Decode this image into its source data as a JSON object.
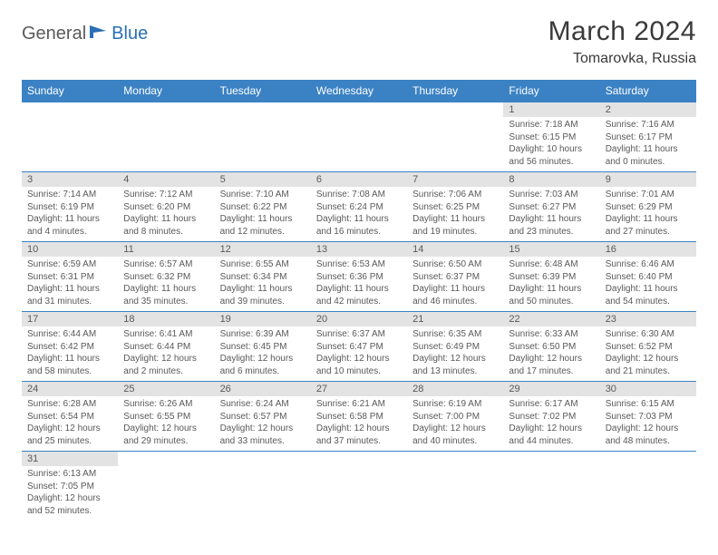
{
  "brand": {
    "part1": "General",
    "part2": "Blue"
  },
  "title": "March 2024",
  "location": "Tomarovka, Russia",
  "colors": {
    "header_bg": "#3b82c4",
    "header_text": "#ffffff",
    "daynum_bg": "#e3e3e3",
    "text_gray": "#595959",
    "border": "#3b82c4",
    "brand_gray": "#5a5a5a",
    "brand_blue": "#2a6fb5"
  },
  "weekdays": [
    "Sunday",
    "Monday",
    "Tuesday",
    "Wednesday",
    "Thursday",
    "Friday",
    "Saturday"
  ],
  "weeks": [
    [
      null,
      null,
      null,
      null,
      null,
      {
        "n": "1",
        "sr": "Sunrise: 7:18 AM",
        "ss": "Sunset: 6:15 PM",
        "dl": "Daylight: 10 hours and 56 minutes."
      },
      {
        "n": "2",
        "sr": "Sunrise: 7:16 AM",
        "ss": "Sunset: 6:17 PM",
        "dl": "Daylight: 11 hours and 0 minutes."
      }
    ],
    [
      {
        "n": "3",
        "sr": "Sunrise: 7:14 AM",
        "ss": "Sunset: 6:19 PM",
        "dl": "Daylight: 11 hours and 4 minutes."
      },
      {
        "n": "4",
        "sr": "Sunrise: 7:12 AM",
        "ss": "Sunset: 6:20 PM",
        "dl": "Daylight: 11 hours and 8 minutes."
      },
      {
        "n": "5",
        "sr": "Sunrise: 7:10 AM",
        "ss": "Sunset: 6:22 PM",
        "dl": "Daylight: 11 hours and 12 minutes."
      },
      {
        "n": "6",
        "sr": "Sunrise: 7:08 AM",
        "ss": "Sunset: 6:24 PM",
        "dl": "Daylight: 11 hours and 16 minutes."
      },
      {
        "n": "7",
        "sr": "Sunrise: 7:06 AM",
        "ss": "Sunset: 6:25 PM",
        "dl": "Daylight: 11 hours and 19 minutes."
      },
      {
        "n": "8",
        "sr": "Sunrise: 7:03 AM",
        "ss": "Sunset: 6:27 PM",
        "dl": "Daylight: 11 hours and 23 minutes."
      },
      {
        "n": "9",
        "sr": "Sunrise: 7:01 AM",
        "ss": "Sunset: 6:29 PM",
        "dl": "Daylight: 11 hours and 27 minutes."
      }
    ],
    [
      {
        "n": "10",
        "sr": "Sunrise: 6:59 AM",
        "ss": "Sunset: 6:31 PM",
        "dl": "Daylight: 11 hours and 31 minutes."
      },
      {
        "n": "11",
        "sr": "Sunrise: 6:57 AM",
        "ss": "Sunset: 6:32 PM",
        "dl": "Daylight: 11 hours and 35 minutes."
      },
      {
        "n": "12",
        "sr": "Sunrise: 6:55 AM",
        "ss": "Sunset: 6:34 PM",
        "dl": "Daylight: 11 hours and 39 minutes."
      },
      {
        "n": "13",
        "sr": "Sunrise: 6:53 AM",
        "ss": "Sunset: 6:36 PM",
        "dl": "Daylight: 11 hours and 42 minutes."
      },
      {
        "n": "14",
        "sr": "Sunrise: 6:50 AM",
        "ss": "Sunset: 6:37 PM",
        "dl": "Daylight: 11 hours and 46 minutes."
      },
      {
        "n": "15",
        "sr": "Sunrise: 6:48 AM",
        "ss": "Sunset: 6:39 PM",
        "dl": "Daylight: 11 hours and 50 minutes."
      },
      {
        "n": "16",
        "sr": "Sunrise: 6:46 AM",
        "ss": "Sunset: 6:40 PM",
        "dl": "Daylight: 11 hours and 54 minutes."
      }
    ],
    [
      {
        "n": "17",
        "sr": "Sunrise: 6:44 AM",
        "ss": "Sunset: 6:42 PM",
        "dl": "Daylight: 11 hours and 58 minutes."
      },
      {
        "n": "18",
        "sr": "Sunrise: 6:41 AM",
        "ss": "Sunset: 6:44 PM",
        "dl": "Daylight: 12 hours and 2 minutes."
      },
      {
        "n": "19",
        "sr": "Sunrise: 6:39 AM",
        "ss": "Sunset: 6:45 PM",
        "dl": "Daylight: 12 hours and 6 minutes."
      },
      {
        "n": "20",
        "sr": "Sunrise: 6:37 AM",
        "ss": "Sunset: 6:47 PM",
        "dl": "Daylight: 12 hours and 10 minutes."
      },
      {
        "n": "21",
        "sr": "Sunrise: 6:35 AM",
        "ss": "Sunset: 6:49 PM",
        "dl": "Daylight: 12 hours and 13 minutes."
      },
      {
        "n": "22",
        "sr": "Sunrise: 6:33 AM",
        "ss": "Sunset: 6:50 PM",
        "dl": "Daylight: 12 hours and 17 minutes."
      },
      {
        "n": "23",
        "sr": "Sunrise: 6:30 AM",
        "ss": "Sunset: 6:52 PM",
        "dl": "Daylight: 12 hours and 21 minutes."
      }
    ],
    [
      {
        "n": "24",
        "sr": "Sunrise: 6:28 AM",
        "ss": "Sunset: 6:54 PM",
        "dl": "Daylight: 12 hours and 25 minutes."
      },
      {
        "n": "25",
        "sr": "Sunrise: 6:26 AM",
        "ss": "Sunset: 6:55 PM",
        "dl": "Daylight: 12 hours and 29 minutes."
      },
      {
        "n": "26",
        "sr": "Sunrise: 6:24 AM",
        "ss": "Sunset: 6:57 PM",
        "dl": "Daylight: 12 hours and 33 minutes."
      },
      {
        "n": "27",
        "sr": "Sunrise: 6:21 AM",
        "ss": "Sunset: 6:58 PM",
        "dl": "Daylight: 12 hours and 37 minutes."
      },
      {
        "n": "28",
        "sr": "Sunrise: 6:19 AM",
        "ss": "Sunset: 7:00 PM",
        "dl": "Daylight: 12 hours and 40 minutes."
      },
      {
        "n": "29",
        "sr": "Sunrise: 6:17 AM",
        "ss": "Sunset: 7:02 PM",
        "dl": "Daylight: 12 hours and 44 minutes."
      },
      {
        "n": "30",
        "sr": "Sunrise: 6:15 AM",
        "ss": "Sunset: 7:03 PM",
        "dl": "Daylight: 12 hours and 48 minutes."
      }
    ],
    [
      {
        "n": "31",
        "sr": "Sunrise: 6:13 AM",
        "ss": "Sunset: 7:05 PM",
        "dl": "Daylight: 12 hours and 52 minutes."
      },
      null,
      null,
      null,
      null,
      null,
      null
    ]
  ]
}
